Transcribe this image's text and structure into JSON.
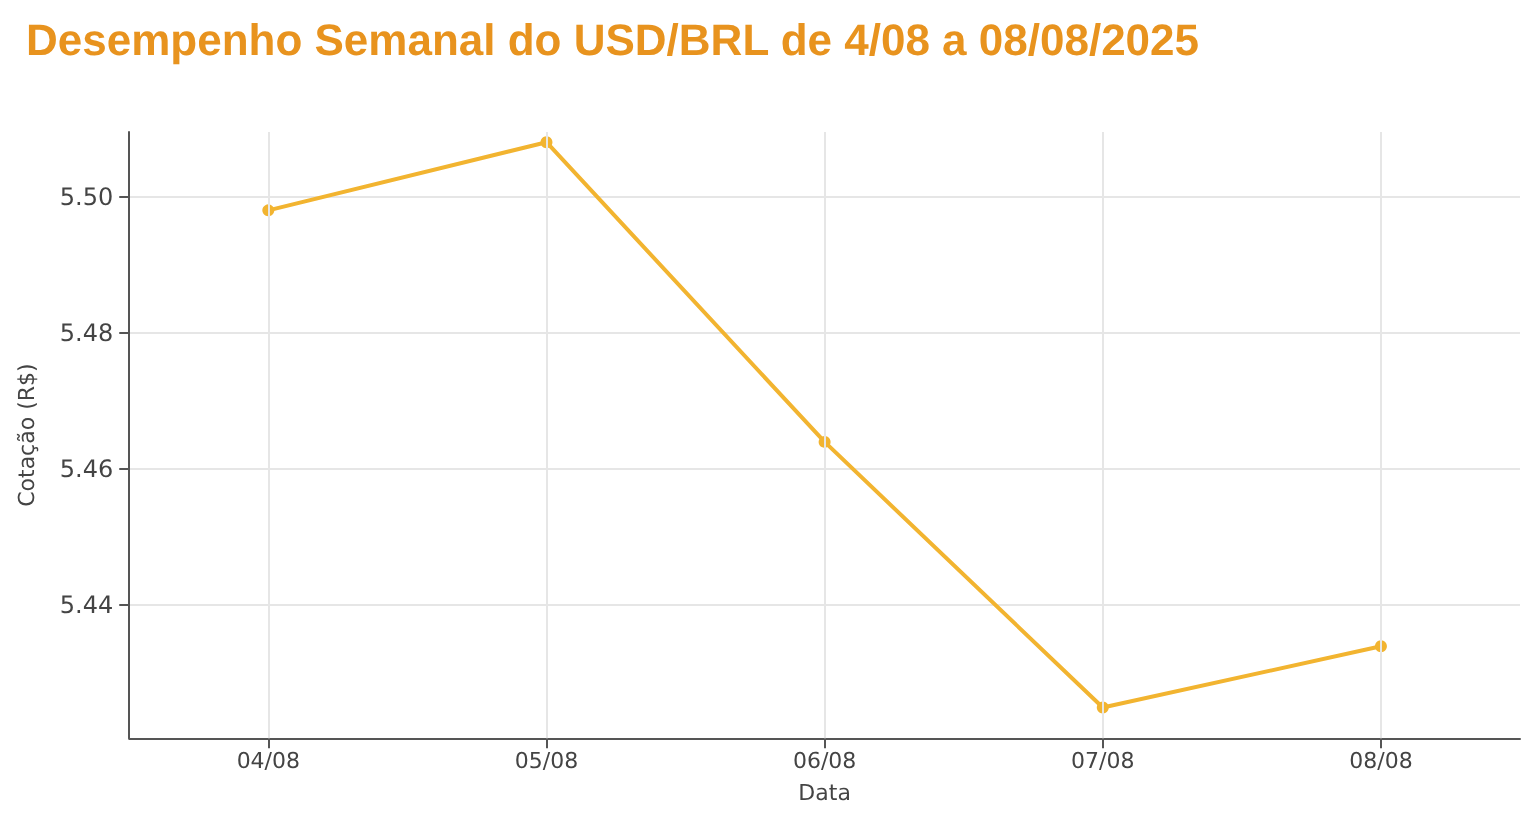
{
  "chart_data": {
    "type": "line",
    "title": "Desempenho Semanal do USD/BRL de 4/08 a 08/08/2025",
    "xlabel": "Data",
    "ylabel": "Cotação (R$)",
    "categories": [
      "04/08",
      "05/08",
      "06/08",
      "07/08",
      "08/08"
    ],
    "series": [
      {
        "color": "#f2b430",
        "values": [
          5.498,
          5.508,
          5.464,
          5.425,
          5.434
        ]
      }
    ],
    "ylim": [
      5.4205,
      5.5095
    ],
    "yticks": [
      {
        "value": 5.44,
        "label": "5.44"
      },
      {
        "value": 5.46,
        "label": "5.46"
      },
      {
        "value": 5.48,
        "label": "5.48"
      },
      {
        "value": 5.5,
        "label": "5.50"
      }
    ],
    "grid": true,
    "marker": "circle",
    "line_style": "solid"
  }
}
